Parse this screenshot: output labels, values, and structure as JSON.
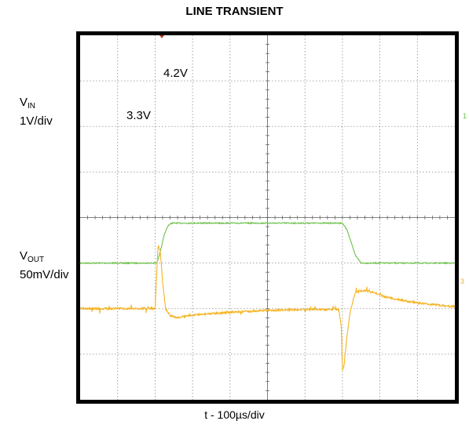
{
  "chart_data": {
    "type": "line",
    "title": "LINE TRANSIENT",
    "xlabel": "t - 100µs/div",
    "x_unit": "µs",
    "x_range": [
      0,
      1000
    ],
    "grid": true,
    "grid_divisions": {
      "x": 10,
      "y": 8
    },
    "channels": [
      {
        "name": "VIN",
        "label_main": "V",
        "label_sub": "IN",
        "scale": "1V/div",
        "color": "#6cc04a",
        "marker": "1"
      },
      {
        "name": "VOUT",
        "label_main": "V",
        "label_sub": "OUT",
        "scale": "50mV/div",
        "color": "#f5b323",
        "marker": "3"
      }
    ],
    "series": [
      {
        "name": "VIN",
        "unit": "V",
        "x": [
          0,
          205,
          215,
          225,
          235,
          245,
          700,
          712,
          724,
          736,
          750,
          1000
        ],
        "y": [
          3.3,
          3.3,
          3.6,
          3.95,
          4.15,
          4.2,
          4.2,
          4.05,
          3.75,
          3.45,
          3.3,
          3.3
        ]
      },
      {
        "name": "VOUT",
        "unit": "mV (deviation)",
        "x": [
          0,
          200,
          208,
          214,
          220,
          228,
          240,
          260,
          300,
          400,
          500,
          600,
          690,
          697,
          700,
          705,
          712,
          722,
          735,
          755,
          780,
          820,
          900,
          1000
        ],
        "y": [
          0,
          0,
          70,
          63,
          30,
          0,
          -8,
          -10,
          -7,
          -4,
          -2,
          -1,
          -1,
          -20,
          -68,
          -60,
          -30,
          0,
          18,
          20,
          18,
          12,
          6,
          2
        ]
      }
    ],
    "annotations": [
      "4.2V",
      "3.3V"
    ]
  }
}
